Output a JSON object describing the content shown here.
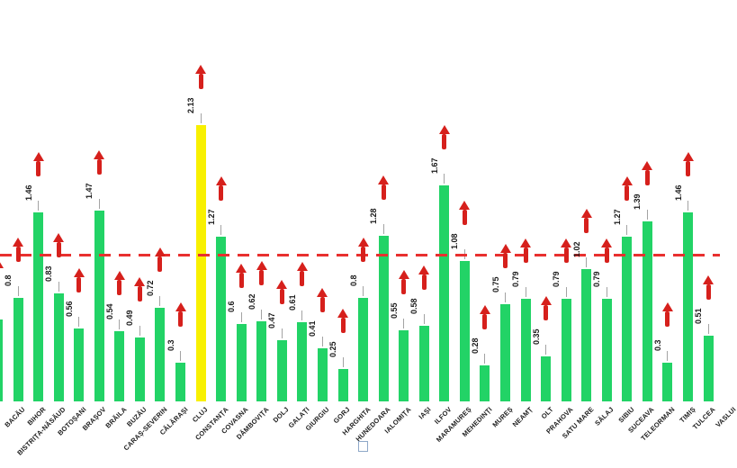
{
  "chart_data": {
    "type": "bar",
    "title": "",
    "xlabel": "",
    "ylabel": "",
    "ylim": [
      0,
      2.35
    ],
    "gridlines": false,
    "legend": "partially cut off at bottom edge (empty swatch visible)",
    "category_label_rotation_deg": 45,
    "value_label_rotation_deg": 90,
    "annotation_note": "red upward arrow above every bar; leftmost bar and rightmost category are cut off by image edges",
    "reference_line": {
      "style": "dashed",
      "color": "#e8302f",
      "estimated_value": 1.13
    },
    "colors": {
      "bar_default": "#22d366",
      "bar_highlight": "#f8f000",
      "arrow": "#d6201c",
      "leader_line": "#a3a3a3"
    },
    "highlight_index": 10,
    "categories": [
      "",
      "BACĂU",
      "BIHOR",
      "BISTRIȚA-NĂSĂUD",
      "BOTOȘANI",
      "BRAȘOV",
      "BRĂILA",
      "BUZĂU",
      "CARAȘ-SEVERIN",
      "CĂLĂRAȘI",
      "CLUJ",
      "CONSTANȚA",
      "COVASNA",
      "DÂMBOVIȚA",
      "DOLJ",
      "GALAȚI",
      "GIURGIU",
      "GORJ",
      "HARGHITA",
      "HUNEDOARA",
      "IALOMIȚA",
      "IAȘI",
      "ILFOV",
      "MARAMUREȘ",
      "MEHEDINȚI",
      "MUREȘ",
      "NEAMȚ",
      "OLT",
      "PRAHOVA",
      "SATU MARE",
      "SĂLAJ",
      "SIBIU",
      "SUCEAVA",
      "TELEORMAN",
      "TIMIȘ",
      "TULCEA",
      "VASLUI"
    ],
    "values": [
      0.63,
      0.8,
      1.46,
      0.83,
      0.56,
      1.47,
      0.54,
      0.49,
      0.72,
      0.3,
      2.13,
      1.27,
      0.6,
      0.62,
      0.47,
      0.61,
      0.41,
      0.25,
      0.8,
      1.28,
      0.55,
      0.58,
      1.67,
      1.08,
      0.28,
      0.75,
      0.79,
      0.35,
      0.79,
      1.02,
      0.79,
      1.27,
      1.39,
      0.3,
      1.46,
      0.51,
      null
    ]
  }
}
